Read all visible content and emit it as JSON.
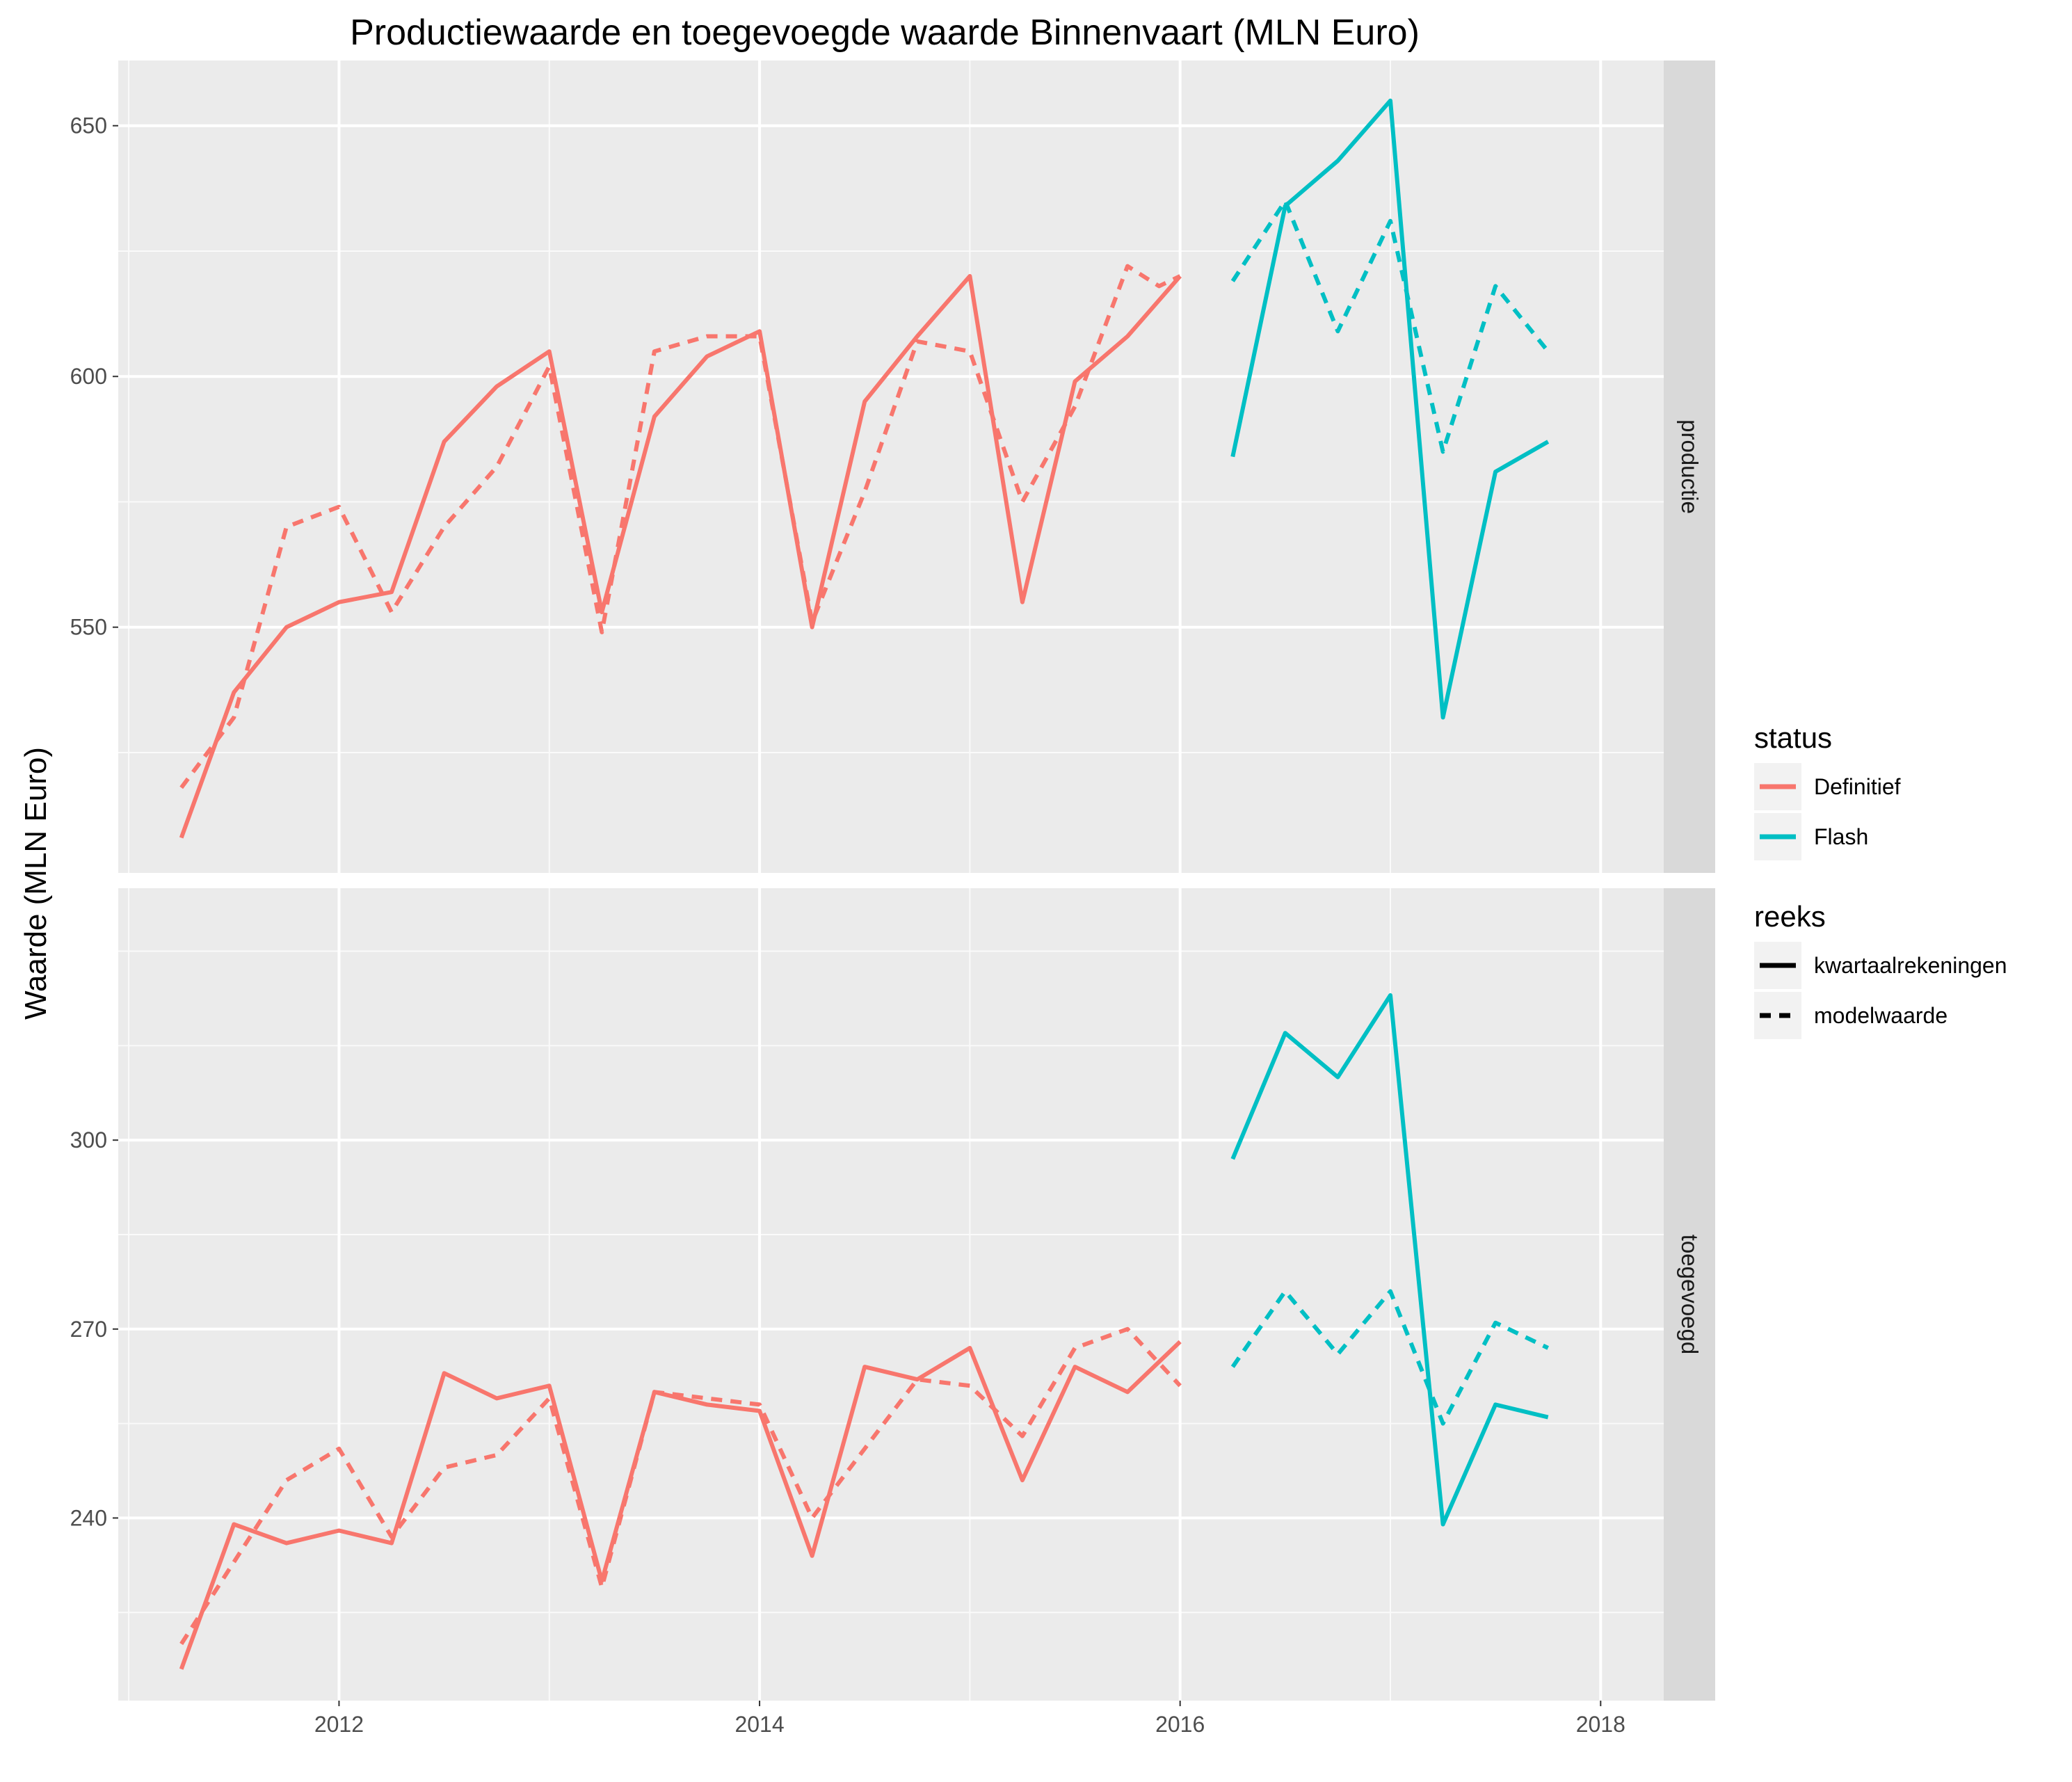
{
  "chart_data": {
    "type": "line",
    "title": "Productiewaarde en toegevoegde waarde Binnenvaart (MLN Euro)",
    "xlabel": "",
    "ylabel": "Waarde (MLN Euro)",
    "x_ticks": [
      "2012",
      "2014",
      "2016",
      "2018"
    ],
    "xlim": [
      2010.95,
      2018.3
    ],
    "grid": true,
    "colors": {
      "Definitief": "#F8766D",
      "Flash": "#00BFC4"
    },
    "legend": {
      "position": "right",
      "status": {
        "title": "status",
        "items": [
          "Definitief",
          "Flash"
        ]
      },
      "reeks": {
        "title": "reeks",
        "items": [
          "kwartaalrekeningen",
          "modelwaarde"
        ]
      }
    },
    "panels": [
      {
        "facet": "productie",
        "ylim": [
          501,
          663
        ],
        "y_ticks": [
          550,
          600,
          650
        ],
        "series": [
          {
            "name": "Definitief",
            "reeks": "kwartaalrekeningen",
            "x": [
              2011.25,
              2011.5,
              2011.75,
              2012.0,
              2012.25,
              2012.5,
              2012.75,
              2013.0,
              2013.25,
              2013.5,
              2013.75,
              2014.0,
              2014.25,
              2014.5,
              2014.75,
              2015.0,
              2015.25,
              2015.5,
              2015.75,
              2016.0
            ],
            "y": [
              508,
              537,
              550,
              555,
              557,
              587,
              598,
              605,
              553,
              592,
              604,
              609,
              550,
              595,
              608,
              620,
              555,
              599,
              608,
              620
            ]
          },
          {
            "name": "Definitief",
            "reeks": "modelwaarde",
            "x": [
              2011.25,
              2011.5,
              2011.75,
              2012.0,
              2012.25,
              2012.5,
              2012.75,
              2013.0,
              2013.25,
              2013.5,
              2013.75,
              2014.0,
              2014.25,
              2014.5,
              2014.75,
              2015.0,
              2015.25,
              2015.5,
              2015.75,
              2015.9,
              2016.0
            ],
            "y": [
              518,
              532,
              570,
              574,
              553,
              570,
              582,
              602,
              549,
              605,
              608,
              608,
              551,
              577,
              607,
              605,
              575,
              594,
              622,
              618,
              620
            ]
          },
          {
            "name": "Flash",
            "reeks": "kwartaalrekeningen",
            "x": [
              2016.25,
              2016.5,
              2016.75,
              2017.0,
              2017.25,
              2017.5,
              2017.75
            ],
            "y": [
              584,
              634,
              643,
              655,
              532,
              581,
              587
            ]
          },
          {
            "name": "Flash",
            "reeks": "modelwaarde",
            "x": [
              2016.25,
              2016.5,
              2016.75,
              2017.0,
              2017.25,
              2017.5,
              2017.75
            ],
            "y": [
              619,
              635,
              609,
              631,
              585,
              618,
              605
            ]
          }
        ]
      },
      {
        "facet": "toegevoegd",
        "ylim": [
          211,
          340
        ],
        "y_ticks": [
          240,
          270,
          300
        ],
        "series": [
          {
            "name": "Definitief",
            "reeks": "kwartaalrekeningen",
            "x": [
              2011.25,
              2011.5,
              2011.75,
              2012.0,
              2012.25,
              2012.5,
              2012.75,
              2013.0,
              2013.25,
              2013.5,
              2013.75,
              2014.0,
              2014.25,
              2014.5,
              2014.75,
              2015.0,
              2015.25,
              2015.5,
              2015.75,
              2016.0
            ],
            "y": [
              216,
              239,
              236,
              238,
              236,
              263,
              259,
              261,
              230,
              260,
              258,
              257,
              234,
              264,
              262,
              267,
              246,
              264,
              260,
              268
            ]
          },
          {
            "name": "Definitief",
            "reeks": "modelwaarde",
            "x": [
              2011.25,
              2011.5,
              2011.75,
              2012.0,
              2012.25,
              2012.5,
              2012.75,
              2013.0,
              2013.25,
              2013.5,
              2013.75,
              2014.0,
              2014.25,
              2014.5,
              2014.75,
              2015.0,
              2015.25,
              2015.5,
              2015.75,
              2016.0
            ],
            "y": [
              220,
              233,
              246,
              251,
              237,
              248,
              250,
              259,
              229,
              260,
              259,
              258,
              240,
              251,
              262,
              261,
              253,
              267,
              270,
              261
            ]
          },
          {
            "name": "Flash",
            "reeks": "kwartaalrekeningen",
            "x": [
              2016.25,
              2016.5,
              2016.75,
              2017.0,
              2017.25,
              2017.5,
              2017.75
            ],
            "y": [
              297,
              317,
              310,
              323,
              239,
              258,
              256
            ]
          },
          {
            "name": "Flash",
            "reeks": "modelwaarde",
            "x": [
              2016.25,
              2016.5,
              2016.75,
              2017.0,
              2017.25,
              2017.5,
              2017.75
            ],
            "y": [
              264,
              276,
              266,
              276,
              255,
              271,
              267
            ]
          }
        ]
      }
    ]
  }
}
